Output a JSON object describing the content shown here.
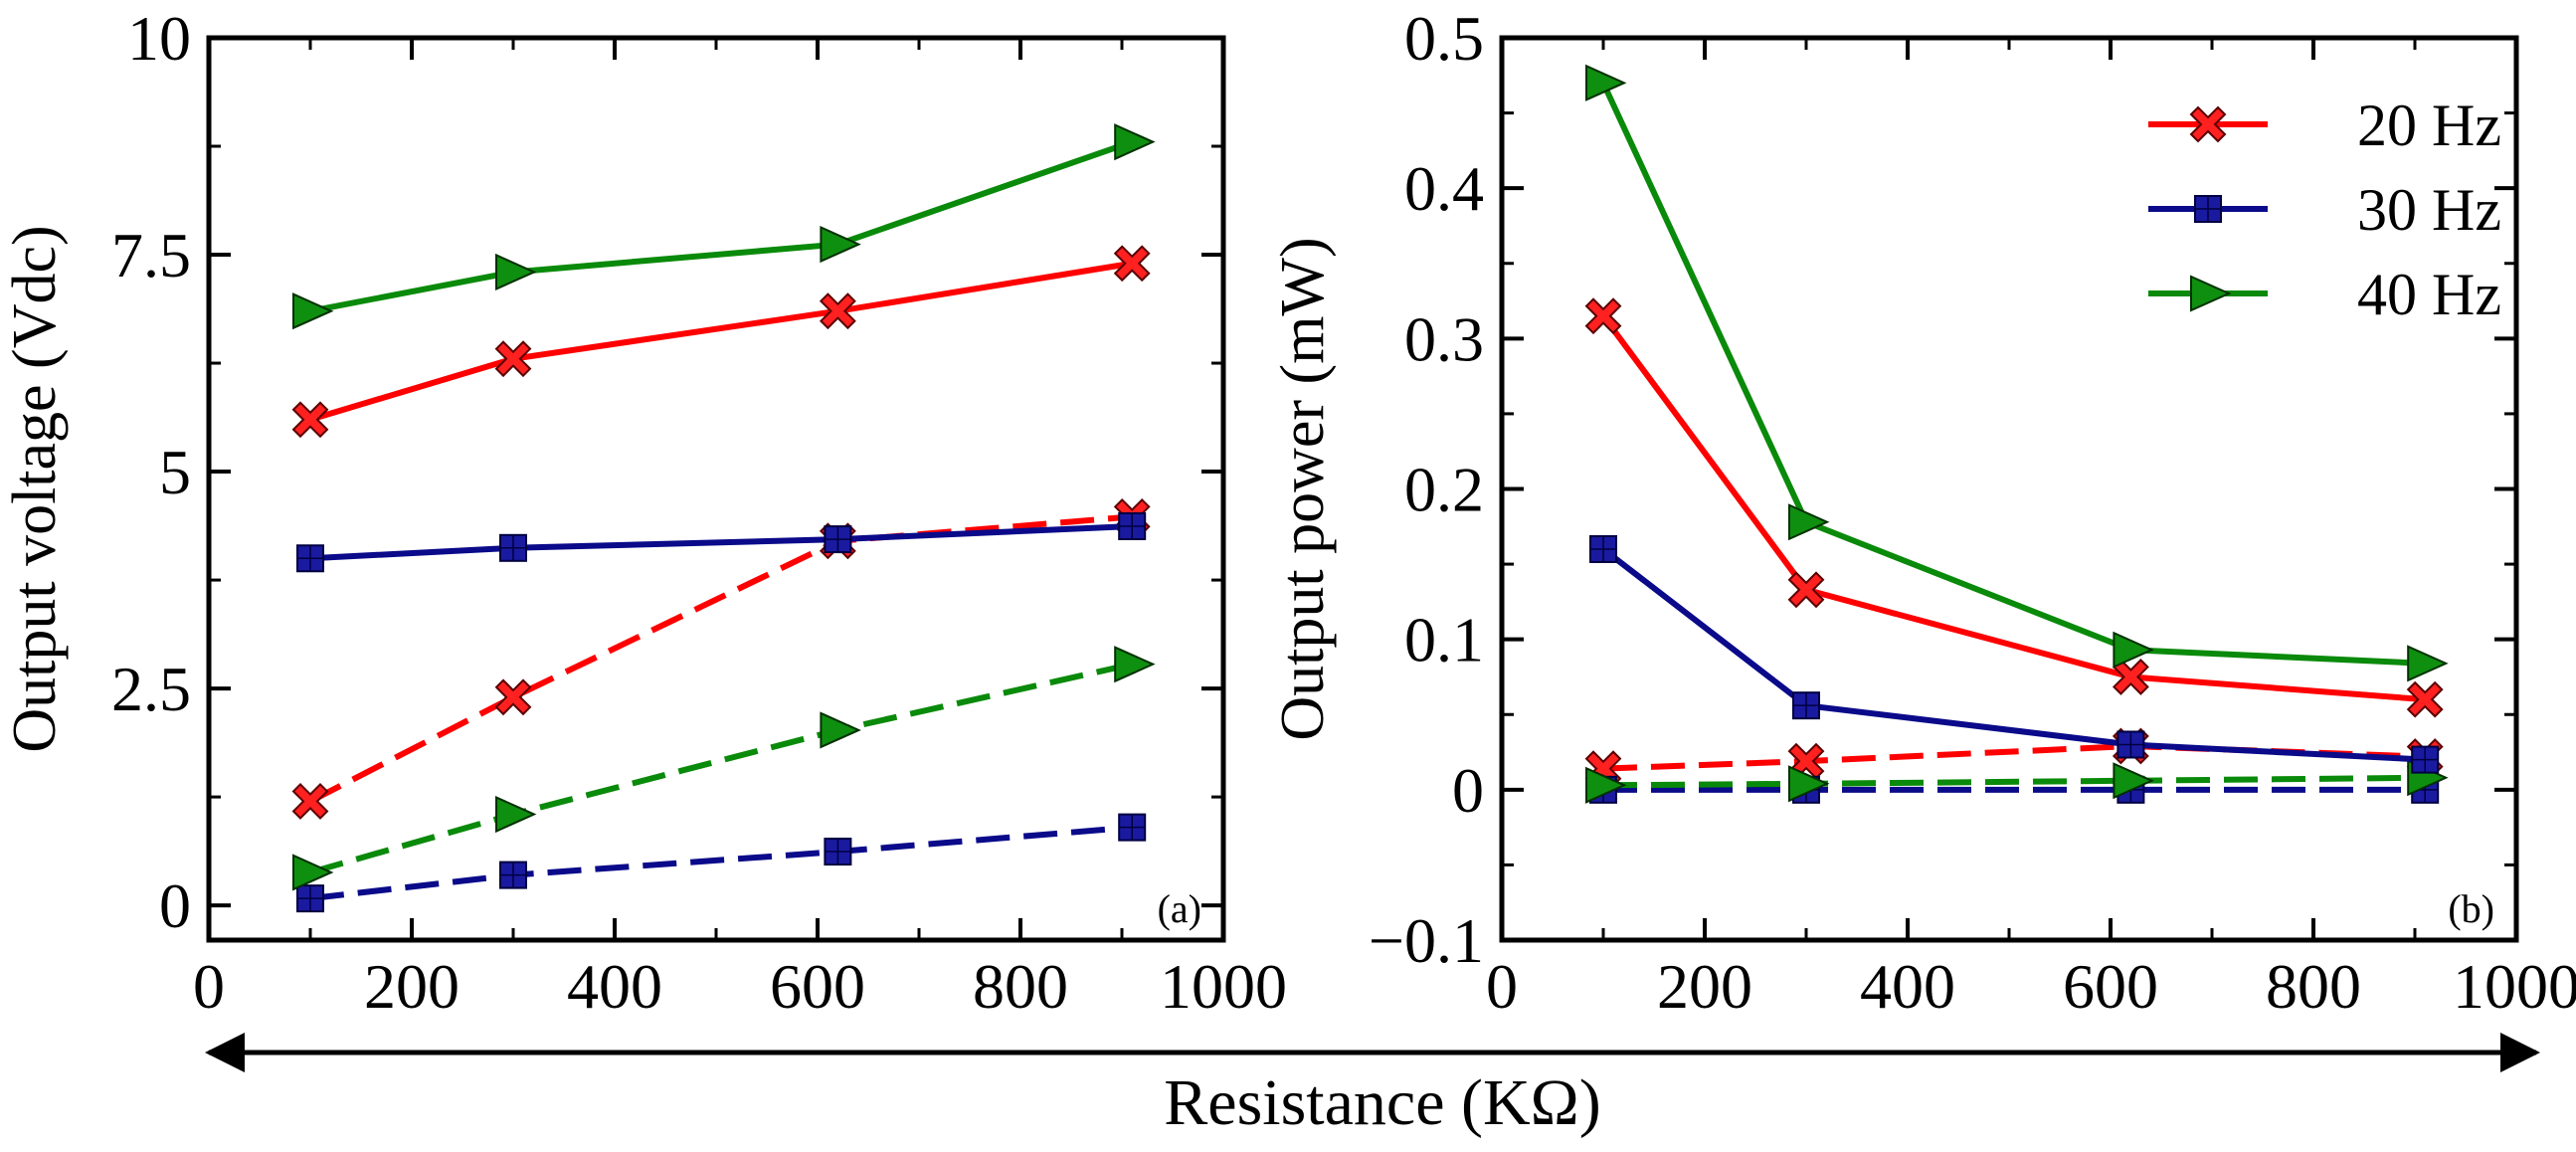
{
  "chart_data": [
    {
      "type": "line",
      "panel_label": "(a)",
      "xlabel": "",
      "ylabel": "Output voltage (Vdc)",
      "xlim": [
        0,
        1000
      ],
      "ylim": [
        -0.4,
        10
      ],
      "xticks": [
        0,
        200,
        400,
        600,
        800,
        1000
      ],
      "xtick_labels": [
        "0",
        "200",
        "400",
        "600",
        "800",
        "1000"
      ],
      "yticks": [
        0,
        2.5,
        5,
        7.5,
        10
      ],
      "ytick_labels": [
        "0",
        "2.5",
        "5",
        "7.5",
        "10"
      ],
      "x": [
        100,
        300,
        620,
        910
      ],
      "series": [
        {
          "name": "20 Hz",
          "style": "solid",
          "color": "#ff0000",
          "marker": "x",
          "values": [
            5.6,
            6.3,
            6.85,
            7.4
          ]
        },
        {
          "name": "30 Hz",
          "style": "solid",
          "color": "#0a0a8a",
          "marker": "square",
          "values": [
            4.0,
            4.12,
            4.22,
            4.37
          ]
        },
        {
          "name": "40 Hz",
          "style": "solid",
          "color": "#0a8a0a",
          "marker": "triangle-right",
          "values": [
            6.85,
            7.3,
            7.62,
            8.8
          ]
        },
        {
          "name": "20 Hz",
          "style": "dashed",
          "color": "#ff0000",
          "marker": "x",
          "values": [
            1.2,
            2.4,
            4.2,
            4.48
          ]
        },
        {
          "name": "30 Hz",
          "style": "dashed",
          "color": "#0a0a8a",
          "marker": "square",
          "values": [
            0.08,
            0.35,
            0.62,
            0.9
          ]
        },
        {
          "name": "40 Hz",
          "style": "dashed",
          "color": "#0a8a0a",
          "marker": "triangle-right",
          "values": [
            0.38,
            1.05,
            2.02,
            2.78
          ]
        }
      ]
    },
    {
      "type": "line",
      "panel_label": "(b)",
      "xlabel": "",
      "ylabel": "Output power (mW)",
      "xlim": [
        0,
        1000
      ],
      "ylim": [
        -0.1,
        0.5
      ],
      "xticks": [
        0,
        200,
        400,
        600,
        800,
        1000
      ],
      "xtick_labels": [
        "0",
        "200",
        "400",
        "600",
        "800",
        "1000"
      ],
      "yticks": [
        -0.1,
        0,
        0.1,
        0.2,
        0.3,
        0.4,
        0.5
      ],
      "ytick_labels": [
        "−0.1",
        "0",
        "0.1",
        "0.2",
        "0.3",
        "0.4",
        "0.5"
      ],
      "x": [
        100,
        300,
        620,
        910
      ],
      "legend_position": "top-right",
      "series": [
        {
          "name": "20 Hz",
          "style": "solid",
          "color": "#ff0000",
          "marker": "x",
          "values": [
            0.315,
            0.133,
            0.075,
            0.06
          ]
        },
        {
          "name": "30 Hz",
          "style": "solid",
          "color": "#0a0a8a",
          "marker": "square",
          "values": [
            0.16,
            0.056,
            0.03,
            0.02
          ]
        },
        {
          "name": "40 Hz",
          "style": "solid",
          "color": "#0a8a0a",
          "marker": "triangle-right",
          "values": [
            0.47,
            0.178,
            0.093,
            0.084
          ]
        },
        {
          "name": "20 Hz",
          "style": "dashed",
          "color": "#ff0000",
          "marker": "x",
          "values": [
            0.014,
            0.019,
            0.029,
            0.022
          ]
        },
        {
          "name": "30 Hz",
          "style": "dashed",
          "color": "#0a0a8a",
          "marker": "square",
          "values": [
            0.0,
            0.0,
            0.0,
            0.0
          ]
        },
        {
          "name": "40 Hz",
          "style": "dashed",
          "color": "#0a8a0a",
          "marker": "triangle-right",
          "values": [
            0.003,
            0.004,
            0.006,
            0.008
          ]
        }
      ]
    }
  ],
  "legend": {
    "items": [
      {
        "label": "20 Hz",
        "color": "#ff0000",
        "marker": "x"
      },
      {
        "label": "30 Hz",
        "color": "#0a0a8a",
        "marker": "square"
      },
      {
        "label": "40 Hz",
        "color": "#0a8a0a",
        "marker": "triangle-right"
      }
    ]
  },
  "shared_xlabel": "Resistance (KΩ)"
}
